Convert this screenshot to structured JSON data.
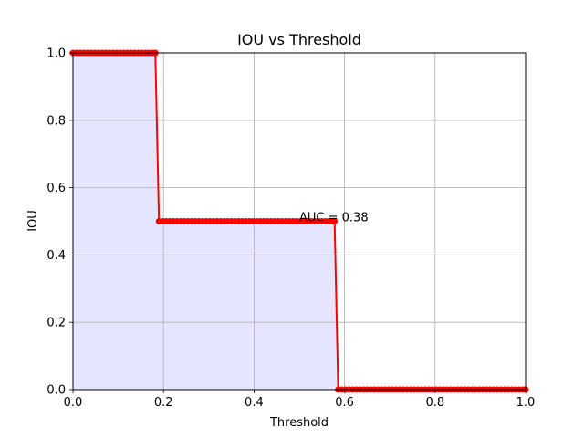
{
  "chart_data": {
    "type": "line",
    "title": "IOU vs Threshold",
    "xlabel": "Threshold",
    "ylabel": "IOU",
    "xlim": [
      0,
      1
    ],
    "ylim": [
      0,
      1
    ],
    "xticks": [
      "0.0",
      "0.2",
      "0.4",
      "0.6",
      "0.8",
      "1.0"
    ],
    "yticks": [
      "0.0",
      "0.2",
      "0.4",
      "0.6",
      "0.8",
      "1.0"
    ],
    "grid": true,
    "legend": "none",
    "series": [
      {
        "steps": [
          {
            "x_start": 0.0,
            "x_end": 0.182,
            "y": 1.0
          },
          {
            "x_start": 0.19,
            "x_end": 0.578,
            "y": 0.5
          },
          {
            "x_start": 0.586,
            "x_end": 1.0,
            "y": 0.0
          }
        ],
        "marker_step": 0.008,
        "color": "#ff0000",
        "fill_color": "#e5e5ff"
      }
    ],
    "annotations": [
      {
        "text": "AUC = 0.38",
        "x": 0.5,
        "y": 0.5
      }
    ]
  }
}
